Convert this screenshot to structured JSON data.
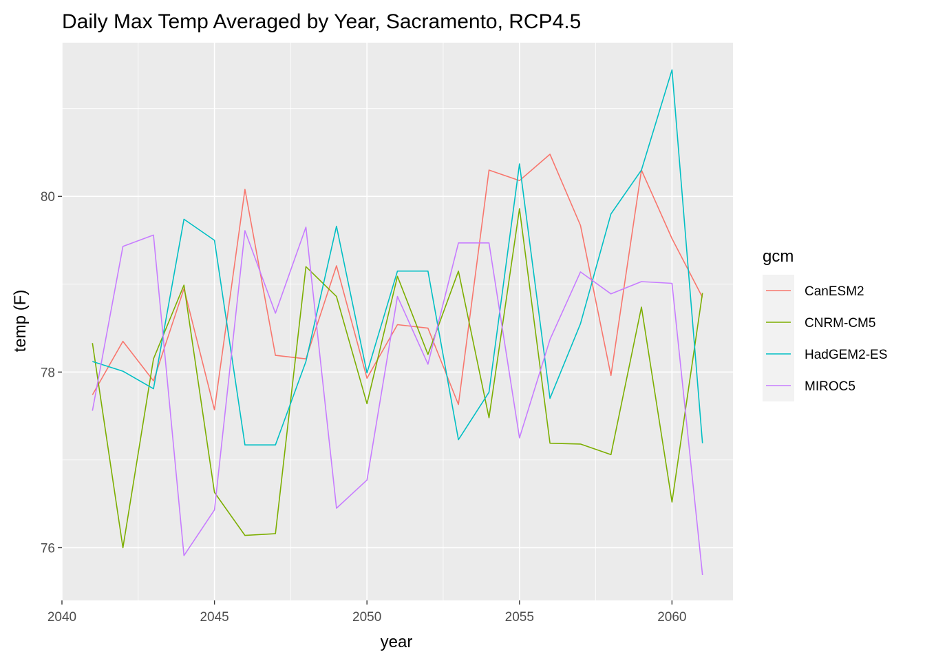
{
  "chart_data": {
    "type": "line",
    "title": "Daily Max Temp Averaged by Year, Sacramento, RCP4.5",
    "xlabel": "year",
    "ylabel": "temp (F)",
    "xlim": [
      2040,
      2062
    ],
    "ylim": [
      75.4,
      81.75
    ],
    "x_ticks": [
      2040,
      2045,
      2050,
      2055,
      2060
    ],
    "y_ticks": [
      76,
      78,
      80
    ],
    "grid": true,
    "legend": {
      "title": "gcm",
      "position": "right"
    },
    "x": [
      2041,
      2042,
      2043,
      2044,
      2045,
      2046,
      2047,
      2048,
      2049,
      2050,
      2051,
      2052,
      2053,
      2054,
      2055,
      2056,
      2057,
      2058,
      2059,
      2060,
      2061
    ],
    "series": [
      {
        "name": "CanESM2",
        "color": "#F8766D",
        "values": [
          77.74,
          78.35,
          77.9,
          78.95,
          77.57,
          80.08,
          78.19,
          78.15,
          79.21,
          77.93,
          78.54,
          78.5,
          77.63,
          80.3,
          80.18,
          80.48,
          79.67,
          77.96,
          80.3,
          79.52,
          78.85
        ]
      },
      {
        "name": "CNRM-CM5",
        "color": "#7CAE00",
        "values": [
          78.33,
          76.0,
          78.15,
          78.99,
          76.63,
          76.14,
          76.16,
          79.2,
          78.86,
          77.64,
          79.09,
          78.2,
          79.15,
          77.48,
          79.86,
          77.19,
          77.18,
          77.06,
          78.74,
          76.52,
          78.9
        ]
      },
      {
        "name": "HadGEM2-ES",
        "color": "#00BFC4",
        "values": [
          78.12,
          78.01,
          77.81,
          79.74,
          79.5,
          77.17,
          77.17,
          78.12,
          79.66,
          77.99,
          79.15,
          79.15,
          77.23,
          77.77,
          80.37,
          77.7,
          78.55,
          79.8,
          80.3,
          81.44,
          77.19
        ]
      },
      {
        "name": "MIROC5",
        "color": "#C77CFF",
        "values": [
          77.56,
          79.43,
          79.56,
          75.91,
          76.43,
          79.61,
          78.67,
          79.65,
          76.45,
          76.77,
          78.86,
          78.09,
          79.47,
          79.47,
          77.25,
          78.37,
          79.14,
          78.89,
          79.03,
          79.01,
          75.69
        ]
      }
    ]
  }
}
